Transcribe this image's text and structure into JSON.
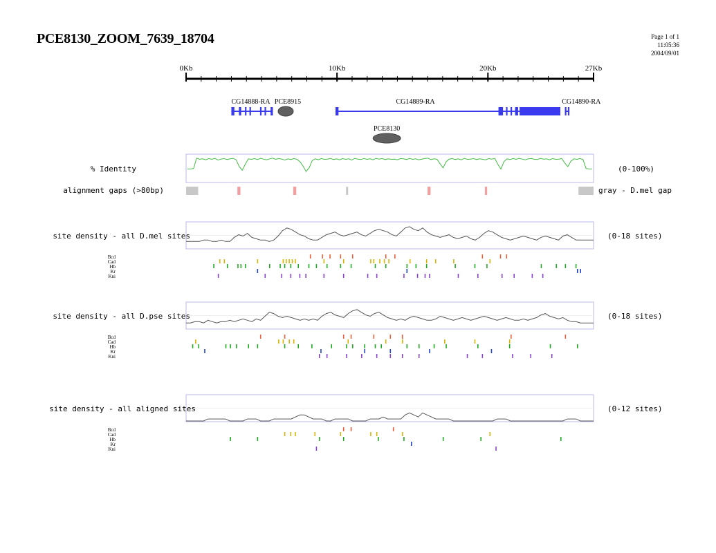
{
  "header": {
    "title": "PCE8130_ZOOM_7639_18704",
    "page": "Page 1 of 1",
    "time": "11:05:36",
    "date": "2004/09/01"
  },
  "ruler": {
    "labels": [
      "0Kb",
      "10Kb",
      "20Kb",
      "27Kb"
    ],
    "label_kb": [
      0,
      10,
      20,
      27
    ],
    "max_kb": 27
  },
  "genes": [
    {
      "label": "CG14888-RA",
      "exons_kb": [
        [
          3.0,
          3.2
        ],
        [
          3.5,
          3.65
        ],
        [
          3.9,
          4.0
        ],
        [
          4.2,
          4.3
        ],
        [
          4.9,
          5.0
        ],
        [
          5.2,
          5.3
        ],
        [
          5.6,
          5.75
        ]
      ],
      "span_kb": [
        3.0,
        5.75
      ]
    },
    {
      "label": "CG14889-RA",
      "exons_kb": [
        [
          9.9,
          10.1
        ],
        [
          20.7,
          21.0
        ],
        [
          21.2,
          21.3
        ],
        [
          21.5,
          21.6
        ],
        [
          21.8,
          22.0
        ],
        [
          22.1,
          24.8
        ]
      ],
      "span_kb": [
        9.9,
        24.8
      ]
    },
    {
      "label": "CG14890-RA",
      "exons_kb": [
        [
          25.1,
          25.2
        ],
        [
          25.3,
          25.4
        ]
      ],
      "span_kb": [
        25.1,
        25.4
      ]
    }
  ],
  "elements": [
    {
      "label": "PCE8915",
      "center_kb": 6.6,
      "row": 1
    },
    {
      "label": "PCE8130",
      "center_kb": 13.3,
      "row": 2
    }
  ],
  "identity": {
    "label": "% Identity",
    "range": "(0-100%)",
    "values": [
      50,
      50,
      52,
      95,
      90,
      92,
      88,
      93,
      90,
      94,
      87,
      91,
      93,
      89,
      92,
      94,
      88,
      60,
      45,
      70,
      92,
      90,
      93,
      89,
      94,
      91,
      88,
      92,
      95,
      90,
      93,
      91,
      87,
      92,
      89,
      93,
      90,
      80,
      62,
      40,
      55,
      85,
      92,
      88,
      93,
      90,
      91,
      94,
      89,
      92,
      88,
      93,
      90,
      92,
      87,
      94,
      91,
      89,
      93,
      90,
      92,
      88,
      94,
      91,
      93,
      89,
      92,
      90,
      91,
      88,
      93,
      92,
      89,
      94,
      90,
      92,
      88,
      91,
      93,
      95,
      89,
      92,
      90,
      72,
      55,
      80,
      91,
      93,
      89,
      92,
      88,
      94,
      90,
      91,
      93,
      89,
      92,
      90,
      88,
      93,
      91,
      94,
      70,
      50,
      80,
      92,
      89,
      93,
      90,
      94,
      91,
      88,
      92,
      93,
      90,
      89,
      94,
      91,
      92,
      88,
      93,
      90,
      91,
      93,
      75,
      60,
      82,
      92,
      90,
      93,
      89,
      52,
      50,
      50
    ]
  },
  "gaps": {
    "label": "alignment gaps (>80bp)",
    "legend": "gray - D.mel gap",
    "items": [
      {
        "start_kb": 0.0,
        "end_kb": 0.8,
        "color": "#c8c8c8"
      },
      {
        "start_kb": 3.4,
        "end_kb": 3.6,
        "color": "#f0a0a0"
      },
      {
        "start_kb": 7.1,
        "end_kb": 7.3,
        "color": "#f0a0a0"
      },
      {
        "start_kb": 10.6,
        "end_kb": 10.7,
        "color": "#c8c8c8"
      },
      {
        "start_kb": 16.0,
        "end_kb": 16.2,
        "color": "#f0a0a0"
      },
      {
        "start_kb": 19.8,
        "end_kb": 19.95,
        "color": "#f0a0a0"
      },
      {
        "start_kb": 26.0,
        "end_kb": 27.0,
        "color": "#c8c8c8"
      }
    ]
  },
  "factor_colors": {
    "Bcd": "#e8603a",
    "Cad": "#d8b400",
    "Hb": "#22aa22",
    "Kr": "#2244cc",
    "Kni": "#8844cc"
  },
  "tracks": [
    {
      "label": "site density - all D.mel sites",
      "range": "(0-18 sites)",
      "density": [
        5,
        5,
        5,
        5,
        6,
        6,
        5,
        5,
        6,
        5,
        5,
        8,
        10,
        9,
        11,
        8,
        7,
        6,
        6,
        5,
        6,
        9,
        13,
        15,
        14,
        12,
        10,
        9,
        7,
        6,
        6,
        8,
        10,
        11,
        12,
        10,
        9,
        10,
        11,
        12,
        10,
        9,
        11,
        13,
        14,
        13,
        12,
        10,
        9,
        12,
        15,
        16,
        14,
        13,
        15,
        12,
        10,
        9,
        8,
        9,
        10,
        8,
        7,
        8,
        9,
        7,
        6,
        8,
        11,
        13,
        12,
        10,
        8,
        7,
        6,
        7,
        8,
        9,
        8,
        7,
        6,
        8,
        9,
        8,
        7,
        6,
        9,
        10,
        8,
        6,
        6,
        6,
        6,
        6
      ],
      "sites": {
        "Bcd": [
          8.2,
          9.0,
          9.5,
          10.2,
          11.0,
          13.2,
          13.8,
          19.6,
          20.8,
          21.2
        ],
        "Cad": [
          2.2,
          2.5,
          4.7,
          6.4,
          6.6,
          6.8,
          7.0,
          7.2,
          9.1,
          10.4,
          12.2,
          12.4,
          12.8,
          13.1,
          13.4,
          14.8,
          15.9,
          16.5,
          17.7,
          20.1
        ],
        "Hb": [
          1.8,
          2.7,
          3.4,
          3.6,
          3.9,
          5.5,
          6.2,
          6.5,
          6.9,
          7.4,
          8.1,
          8.6,
          9.3,
          10.2,
          10.9,
          12.5,
          13.2,
          14.6,
          15.2,
          15.9,
          17.8,
          19.1,
          19.9,
          23.5,
          24.5,
          25.1,
          25.8
        ],
        "Kr": [
          4.7,
          14.6,
          25.9,
          26.1
        ],
        "Kni": [
          2.1,
          5.2,
          6.3,
          6.9,
          7.5,
          7.9,
          9.1,
          10.4,
          12.0,
          12.6,
          14.4,
          15.3,
          15.8,
          16.1,
          18.0,
          19.3,
          20.9,
          21.7,
          22.9,
          23.6
        ]
      }
    },
    {
      "label": "site density - all D.pse sites",
      "range": "(0-18 sites)",
      "density": [
        4,
        4,
        5,
        5,
        4,
        6,
        5,
        4,
        5,
        5,
        6,
        5,
        6,
        7,
        6,
        5,
        7,
        6,
        9,
        12,
        11,
        9,
        8,
        9,
        8,
        7,
        6,
        7,
        6,
        7,
        6,
        9,
        11,
        12,
        10,
        9,
        8,
        11,
        13,
        14,
        12,
        10,
        9,
        11,
        12,
        10,
        8,
        7,
        6,
        7,
        6,
        8,
        9,
        8,
        7,
        6,
        6,
        7,
        9,
        8,
        7,
        6,
        7,
        8,
        7,
        6,
        7,
        8,
        9,
        8,
        7,
        6,
        7,
        8,
        7,
        6,
        6,
        7,
        6,
        7,
        8,
        10,
        11,
        9,
        8,
        7,
        8,
        6,
        5,
        5,
        4,
        4,
        4,
        4
      ],
      "sites": {
        "Bcd": [
          4.9,
          6.5,
          10.4,
          10.9,
          12.4,
          13.5,
          14.3,
          21.5,
          25.1
        ],
        "Cad": [
          0.6,
          6.1,
          6.4,
          6.8,
          7.1,
          10.7,
          13.2,
          14.3,
          17.1,
          19.1,
          21.4
        ],
        "Hb": [
          0.4,
          0.8,
          2.6,
          2.9,
          3.3,
          4.1,
          4.7,
          6.5,
          7.4,
          8.3,
          9.6,
          10.6,
          11.0,
          11.8,
          12.5,
          12.9,
          14.6,
          15.4,
          16.4,
          17.2,
          19.3,
          21.4,
          24.1,
          25.9
        ],
        "Kr": [
          1.2,
          8.9,
          11.8,
          13.5,
          16.1,
          20.2
        ],
        "Kni": [
          8.8,
          9.3,
          10.6,
          11.6,
          12.6,
          13.5,
          14.3,
          15.4,
          18.6,
          19.6,
          21.6,
          22.8,
          24.2
        ]
      }
    },
    {
      "label": "site density - all aligned sites",
      "range": "(0-12 sites)",
      "density": [
        0,
        0,
        0,
        0,
        0,
        1,
        1,
        1,
        1,
        1,
        0,
        0,
        0,
        0,
        1,
        1,
        1,
        0,
        0,
        0,
        1,
        1,
        1,
        1,
        1,
        2,
        3,
        3,
        2,
        1,
        1,
        1,
        0,
        0,
        1,
        1,
        1,
        1,
        0,
        0,
        0,
        0,
        1,
        1,
        1,
        2,
        1,
        1,
        1,
        1,
        3,
        4,
        3,
        2,
        4,
        3,
        2,
        1,
        1,
        1,
        1,
        0,
        0,
        0,
        0,
        0,
        0,
        0,
        0,
        0,
        0,
        1,
        1,
        1,
        0,
        0,
        0,
        0,
        0,
        0,
        0,
        0,
        0,
        0,
        0,
        0,
        0,
        1,
        1,
        1,
        0,
        0,
        0,
        0
      ],
      "sites": {
        "Bcd": [
          10.4,
          10.9,
          13.7
        ],
        "Cad": [
          6.5,
          6.9,
          7.2,
          8.5,
          10.2,
          12.2,
          12.6,
          14.3,
          20.1
        ],
        "Hb": [
          2.9,
          4.7,
          8.8,
          10.4,
          12.7,
          14.4,
          17.0,
          19.5,
          24.8
        ],
        "Kr": [
          14.9
        ],
        "Kni": [
          8.6,
          20.5
        ]
      }
    }
  ]
}
